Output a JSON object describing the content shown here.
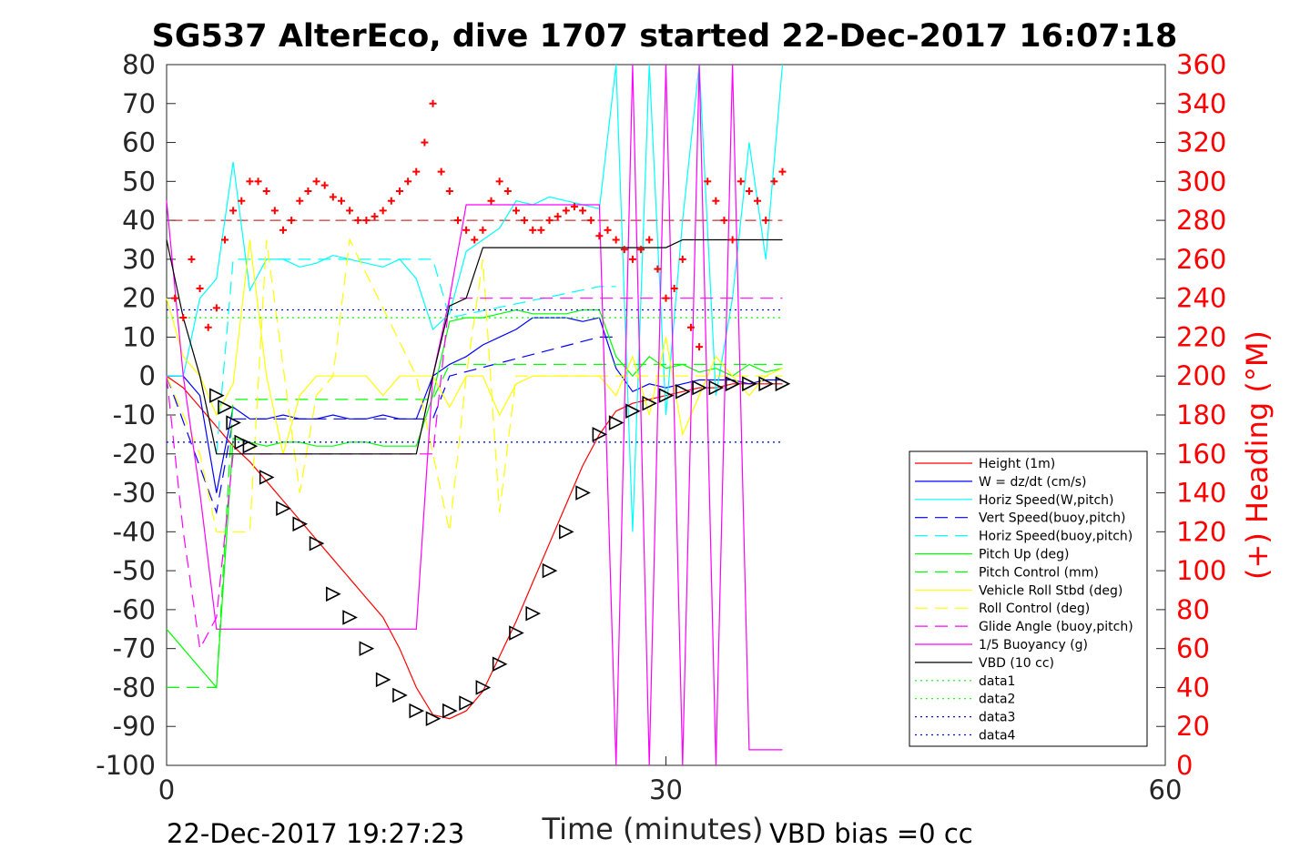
{
  "chart_data": {
    "type": "line",
    "title": "SG537 AlterEco, dive 1707 started 22-Dec-2017 16:07:18",
    "xlabel": "Time (minutes)",
    "ylabel": "",
    "ylabel_right": "(+) Heading (°M)",
    "xlim": [
      0,
      60
    ],
    "ylim": [
      -100,
      80
    ],
    "ylim_right": [
      0,
      360
    ],
    "x_ticks": [
      "0",
      "30",
      "60"
    ],
    "y_ticks": [
      "80",
      "70",
      "60",
      "50",
      "40",
      "30",
      "20",
      "10",
      "0",
      "-10",
      "-20",
      "-30",
      "-40",
      "-50",
      "-60",
      "-70",
      "-80",
      "-90",
      "-100"
    ],
    "y_ticks_right": [
      "360",
      "340",
      "320",
      "300",
      "280",
      "260",
      "240",
      "220",
      "200",
      "180",
      "160",
      "140",
      "120",
      "100",
      "80",
      "60",
      "40",
      "20",
      "0"
    ],
    "footer_left": "22-Dec-2017 19:27:23",
    "footer_right": "VBD bias =0 cc",
    "legend_position": "bottom-right",
    "series": [
      {
        "name": "Height (1m)",
        "color": "#ff0000",
        "style": "solid",
        "x": [
          0,
          1,
          2,
          3,
          4,
          5,
          6,
          7,
          8,
          9,
          10,
          11,
          12,
          13,
          14,
          15,
          16,
          17,
          18,
          19,
          20,
          21,
          22,
          23,
          24,
          25,
          26,
          27,
          28,
          29,
          30,
          31,
          32,
          33,
          34,
          35,
          36,
          37
        ],
        "y": [
          0,
          -3,
          -8,
          -13,
          -18,
          -22,
          -27,
          -32,
          -37,
          -42,
          -47,
          -52,
          -57,
          -62,
          -70,
          -80,
          -87,
          -88,
          -86,
          -81,
          -72,
          -63,
          -53,
          -43,
          -33,
          -23,
          -15,
          -9,
          -7,
          -6,
          -5,
          -4,
          -3,
          -3,
          -2,
          -2,
          -2,
          -2
        ]
      },
      {
        "name": "W = dz/dt (cm/s)",
        "color": "#0000ff",
        "style": "solid",
        "x": [
          0,
          1,
          2,
          3,
          4,
          5,
          6,
          7,
          8,
          9,
          10,
          11,
          12,
          13,
          14,
          15,
          16,
          17,
          18,
          19,
          20,
          21,
          22,
          23,
          24,
          25,
          26,
          27,
          28,
          29,
          30,
          31,
          32,
          33,
          34,
          35,
          36,
          37
        ],
        "y": [
          0,
          0,
          -5,
          -30,
          -8,
          -11,
          -11,
          -10,
          -11,
          -11,
          -10,
          -11,
          -11,
          -10,
          -11,
          -11,
          0,
          3,
          5,
          8,
          10,
          12,
          15,
          15,
          15,
          14,
          15,
          2,
          -4,
          -2,
          -3,
          -2,
          -1,
          -1,
          -1,
          -2,
          -1,
          -1
        ]
      },
      {
        "name": "Horiz Speed(W,pitch)",
        "color": "#00ffff",
        "style": "solid",
        "x": [
          0,
          1,
          2,
          3,
          4,
          5,
          6,
          7,
          8,
          9,
          10,
          11,
          12,
          13,
          14,
          15,
          16,
          17,
          18,
          19,
          20,
          21,
          22,
          23,
          24,
          25,
          26,
          27,
          28,
          29,
          30,
          31,
          32,
          33,
          34,
          35,
          36,
          37
        ],
        "y": [
          0,
          0,
          20,
          25,
          55,
          22,
          30,
          30,
          28,
          29,
          31,
          30,
          29,
          28,
          30,
          25,
          12,
          16,
          32,
          35,
          38,
          45,
          44,
          46,
          45,
          44,
          43,
          80,
          -40,
          80,
          -10,
          40,
          80,
          -5,
          20,
          60,
          30,
          80
        ]
      },
      {
        "name": "Vert Speed(buoy,pitch)",
        "color": "#0000ff",
        "style": "dashed",
        "x": [
          0,
          3,
          4,
          16,
          17,
          26,
          27
        ],
        "y": [
          0,
          -35,
          -11,
          -11,
          0,
          10,
          10
        ]
      },
      {
        "name": "Horiz Speed(buoy,pitch)",
        "color": "#00ffff",
        "style": "dashed",
        "x": [
          3,
          4,
          16,
          17,
          26,
          27
        ],
        "y": [
          -20,
          30,
          30,
          15,
          23,
          23
        ]
      },
      {
        "name": "Pitch Up (deg)",
        "color": "#00ff00",
        "style": "solid",
        "x": [
          0,
          1,
          2,
          3,
          4,
          5,
          6,
          7,
          8,
          9,
          10,
          11,
          12,
          13,
          14,
          15,
          16,
          17,
          18,
          19,
          20,
          21,
          22,
          23,
          24,
          25,
          26,
          27,
          28,
          29,
          30,
          31,
          32,
          33,
          34,
          35,
          36,
          37
        ],
        "y": [
          -65,
          -70,
          -75,
          -80,
          -16,
          -17,
          -18,
          -17,
          -17,
          -18,
          -18,
          -17,
          -17,
          -18,
          -18,
          -18,
          -5,
          14,
          15,
          15,
          16,
          17,
          16,
          16,
          16,
          17,
          17,
          5,
          0,
          5,
          2,
          3,
          1,
          2,
          0,
          3,
          1,
          2
        ]
      },
      {
        "name": "Pitch Control (mm)",
        "color": "#00ff00",
        "style": "dashed",
        "x": [
          0,
          3,
          4,
          16,
          17,
          26,
          27,
          37
        ],
        "y": [
          -80,
          -80,
          -6,
          -6,
          3,
          3,
          3,
          3
        ]
      },
      {
        "name": "Vehicle Roll Stbd (deg)",
        "color": "#ffff00",
        "style": "solid",
        "x": [
          0,
          1,
          2,
          3,
          4,
          5,
          6,
          7,
          8,
          9,
          10,
          11,
          12,
          13,
          14,
          15,
          16,
          17,
          18,
          19,
          20,
          21,
          22,
          23,
          24,
          25,
          26,
          27,
          28,
          29,
          30,
          31,
          32,
          33,
          34,
          35,
          36,
          37
        ],
        "y": [
          20,
          5,
          0,
          -10,
          -2,
          35,
          0,
          -20,
          -5,
          0,
          0,
          0,
          0,
          -5,
          0,
          0,
          0,
          -8,
          0,
          0,
          -10,
          -2,
          0,
          0,
          0,
          0,
          0,
          -5,
          5,
          -10,
          10,
          -15,
          -5,
          5,
          0,
          -5,
          0,
          2
        ]
      },
      {
        "name": "Roll Control (deg)",
        "color": "#ffff00",
        "style": "dashed",
        "x": [
          0,
          2,
          3,
          5,
          6,
          8,
          9,
          10,
          11,
          15,
          17,
          18,
          19,
          20,
          21,
          27,
          37
        ],
        "y": [
          0,
          -20,
          -40,
          -40,
          35,
          -30,
          -5,
          0,
          35,
          0,
          -40,
          0,
          30,
          -35,
          0,
          0,
          0
        ]
      },
      {
        "name": "Glide Angle (buoy,pitch)",
        "color": "#ff00ff",
        "style": "dashed",
        "x": [
          0,
          1,
          2,
          3,
          4,
          5,
          16,
          17,
          26,
          27,
          37
        ],
        "y": [
          0,
          -40,
          -70,
          -62,
          -20,
          -20,
          -20,
          20,
          20,
          20,
          20
        ]
      },
      {
        "name": "1/5 Buoyancy (g)",
        "color": "#ff00ff",
        "style": "solid",
        "x": [
          0,
          1,
          2,
          3,
          4,
          14,
          15,
          16,
          17,
          18,
          19,
          20,
          26,
          27,
          28,
          29,
          30,
          31,
          32,
          33,
          34,
          35,
          36,
          37
        ],
        "y": [
          45,
          0,
          -30,
          -65,
          -65,
          -65,
          -65,
          0,
          20,
          44,
          44,
          44,
          44,
          -100,
          80,
          -100,
          80,
          -100,
          80,
          -100,
          80,
          -96,
          -96,
          -96
        ]
      },
      {
        "name": "VBD (10 cc)",
        "color": "#000000",
        "style": "solid",
        "x": [
          0,
          1,
          2,
          3,
          4,
          14,
          15,
          16,
          17,
          18,
          19,
          20,
          26,
          27,
          30,
          31,
          32,
          33,
          34,
          35,
          36,
          37
        ],
        "y": [
          35,
          15,
          0,
          -20,
          -20,
          -20,
          -20,
          0,
          18,
          20,
          33,
          33,
          33,
          33,
          33,
          35,
          35,
          35,
          35,
          35,
          35,
          35
        ]
      },
      {
        "name": "data1",
        "color": "#00ff00",
        "style": "dotted",
        "x": [
          0,
          37
        ],
        "y": [
          15,
          15
        ]
      },
      {
        "name": "data2",
        "color": "#00ff00",
        "style": "dotted",
        "x": [
          0,
          37
        ],
        "y": [
          -17,
          -17
        ]
      },
      {
        "name": "data3",
        "color": "#0000ff",
        "style": "dotted",
        "x": [
          0,
          37
        ],
        "y": [
          17,
          17
        ]
      },
      {
        "name": "data4",
        "color": "#0000ff",
        "style": "dotted",
        "x": [
          0,
          37
        ],
        "y": [
          -17,
          -17
        ]
      }
    ],
    "heading": {
      "color": "#ff0000",
      "marker": "+",
      "x": [
        0.5,
        1,
        1.5,
        2,
        2.5,
        3,
        3.5,
        4,
        4.5,
        5,
        5.5,
        6,
        6.5,
        7,
        7.5,
        8,
        8.5,
        9,
        9.5,
        10,
        10.5,
        11,
        11.5,
        12,
        12.5,
        13,
        13.5,
        14,
        14.5,
        15,
        15.5,
        16,
        16.5,
        17,
        17.5,
        18,
        18.5,
        19,
        19.5,
        20,
        20.5,
        21,
        21.5,
        22,
        22.5,
        23,
        23.5,
        24,
        24.5,
        25,
        25.5,
        26,
        26.5,
        27,
        27.5,
        28,
        28.5,
        29,
        29.5,
        30,
        30.5,
        31,
        31.5,
        32,
        32.5,
        33,
        33.5,
        34,
        34.5,
        35,
        35.5,
        36,
        36.5,
        37
      ],
      "y": [
        240,
        230,
        260,
        245,
        225,
        235,
        270,
        285,
        290,
        300,
        300,
        295,
        285,
        275,
        280,
        290,
        295,
        300,
        298,
        292,
        290,
        285,
        280,
        280,
        282,
        285,
        290,
        295,
        300,
        305,
        320,
        340,
        305,
        295,
        280,
        275,
        270,
        275,
        290,
        300,
        295,
        285,
        280,
        275,
        275,
        280,
        282,
        285,
        287,
        285,
        280,
        272,
        275,
        270,
        265,
        260,
        265,
        270,
        255,
        240,
        245,
        260,
        225,
        215,
        300,
        290,
        280,
        270,
        300,
        295,
        290,
        280,
        300,
        305
      ]
    },
    "annotations": {
      "marker": "triangle",
      "x": [
        3,
        3.5,
        4,
        4.5,
        5,
        6,
        7,
        8,
        9,
        10,
        11,
        12,
        13,
        14,
        15,
        16,
        17,
        18,
        19,
        20,
        21,
        22,
        23,
        24,
        25,
        26,
        27,
        28,
        29,
        30,
        31,
        32,
        33,
        34,
        35,
        36,
        37
      ],
      "y": [
        -5,
        -8,
        -12,
        -17,
        -18,
        -26,
        -34,
        -38,
        -43,
        -56,
        -62,
        -70,
        -78,
        -82,
        -86,
        -88,
        -86,
        -84,
        -80,
        -74,
        -66,
        -61,
        -50,
        -40,
        -30,
        -15,
        -12,
        -9,
        -7,
        -5,
        -4,
        -3,
        -3,
        -2,
        -2,
        -2,
        -2
      ]
    },
    "reference_line": {
      "y_right": 280,
      "color": "#c00000",
      "style": "dashed"
    }
  }
}
